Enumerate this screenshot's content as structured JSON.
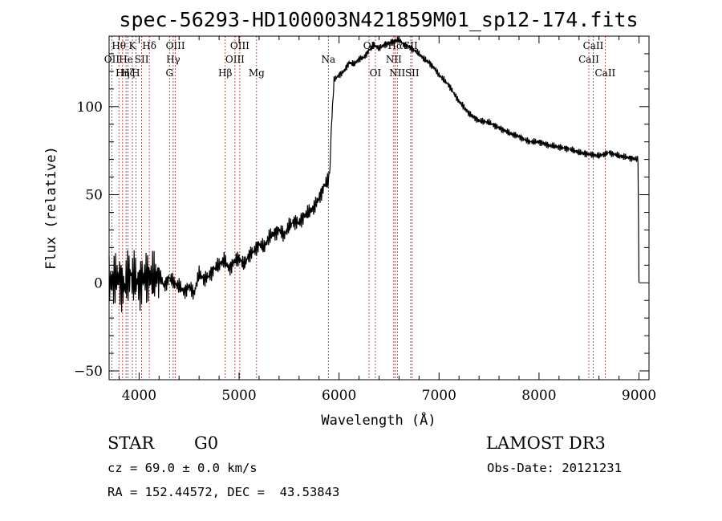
{
  "chart_data": {
    "type": "line",
    "title": "spec-56293-HD100003N421859M01_sp12-174.fits",
    "xlabel": "Wavelength (Å)",
    "ylabel": "Flux (relative)",
    "xlim": [
      3700,
      9100
    ],
    "ylim": [
      -55,
      140
    ],
    "x_ticks": [
      4000,
      5000,
      6000,
      7000,
      8000,
      9000
    ],
    "x_tick_labels": [
      "4000",
      "5000",
      "6000",
      "7000",
      "8000",
      "9000"
    ],
    "y_ticks": [
      -50,
      0,
      50,
      100
    ],
    "y_tick_labels": [
      "−50",
      "0",
      "50",
      "100"
    ],
    "grid": false,
    "series": [
      {
        "name": "spectrum flux",
        "color": "#000000",
        "x": [
          3700,
          3750,
          3800,
          3850,
          3900,
          3950,
          4000,
          4050,
          4100,
          4150,
          4200,
          4250,
          4300,
          4350,
          4400,
          4450,
          4500,
          4550,
          4600,
          4650,
          4700,
          4750,
          4800,
          4850,
          4900,
          4950,
          5000,
          5050,
          5100,
          5150,
          5200,
          5250,
          5300,
          5350,
          5400,
          5450,
          5500,
          5550,
          5600,
          5650,
          5700,
          5750,
          5800,
          5850,
          5890,
          5910,
          5920,
          5950,
          6000,
          6050,
          6100,
          6150,
          6200,
          6250,
          6300,
          6350,
          6400,
          6450,
          6500,
          6550,
          6600,
          6650,
          6700,
          6750,
          6800,
          6850,
          6900,
          6950,
          7000,
          7100,
          7200,
          7300,
          7400,
          7500,
          7600,
          7700,
          7800,
          7900,
          8000,
          8100,
          8200,
          8300,
          8400,
          8500,
          8600,
          8700,
          8800,
          8900,
          8990,
          9000
        ],
        "y": [
          0,
          2,
          3,
          -3,
          5,
          2,
          0,
          3,
          4,
          2,
          5,
          -2,
          3,
          0,
          -2,
          -5,
          -2,
          -6,
          5,
          2,
          4,
          8,
          10,
          13,
          8,
          12,
          14,
          10,
          16,
          18,
          22,
          20,
          26,
          28,
          30,
          27,
          32,
          35,
          34,
          38,
          40,
          43,
          48,
          55,
          58,
          65,
          85,
          115,
          118,
          120,
          125,
          124,
          127,
          128,
          132,
          135,
          133,
          135,
          136,
          137,
          138,
          135,
          134,
          132,
          130,
          127,
          125,
          122,
          118,
          112,
          103,
          96,
          92,
          91,
          88,
          85,
          83,
          80,
          80,
          78,
          77,
          76,
          74,
          73,
          72,
          74,
          72,
          71,
          70,
          0
        ]
      }
    ],
    "lines": [
      {
        "wavelength": 3727,
        "label": "OII",
        "row": 1
      },
      {
        "wavelength": 3798,
        "label": "Hθ",
        "row": 0
      },
      {
        "wavelength": 3835,
        "label": "Hη",
        "row": 2
      },
      {
        "wavelength": 3869,
        "label": "He",
        "row": 1
      },
      {
        "wavelength": 3889,
        "label": "Hζ",
        "row": 2
      },
      {
        "wavelength": 3933,
        "label": "K",
        "row": 0
      },
      {
        "wavelength": 3968,
        "label": "H",
        "row": 2
      },
      {
        "wavelength": 4026,
        "label": "SII",
        "row": 1
      },
      {
        "wavelength": 4102,
        "label": "Hδ",
        "row": 0
      },
      {
        "wavelength": 4304,
        "label": "G",
        "row": 2
      },
      {
        "wavelength": 4341,
        "label": "Hγ",
        "row": 1
      },
      {
        "wavelength": 4363,
        "label": "OIII",
        "row": 0
      },
      {
        "wavelength": 4861,
        "label": "Hβ",
        "row": 2
      },
      {
        "wavelength": 4959,
        "label": "OIII",
        "row": 1
      },
      {
        "wavelength": 5007,
        "label": "OIII",
        "row": 0
      },
      {
        "wavelength": 5175,
        "label": "Mg",
        "row": 2
      },
      {
        "wavelength": 5893,
        "label": "Na",
        "row": 1
      },
      {
        "wavelength": 6300,
        "label": "OI",
        "row": 0
      },
      {
        "wavelength": 6363,
        "label": "OI",
        "row": 2
      },
      {
        "wavelength": 6548,
        "label": "NII",
        "row": 1
      },
      {
        "wavelength": 6563,
        "label": "Hα",
        "row": 0
      },
      {
        "wavelength": 6583,
        "label": "NII",
        "row": 2
      },
      {
        "wavelength": 6716,
        "label": "SII",
        "row": 0
      },
      {
        "wavelength": 6731,
        "label": "SII",
        "row": 2
      },
      {
        "wavelength": 8498,
        "label": "CaII",
        "row": 1
      },
      {
        "wavelength": 8542,
        "label": "CaII",
        "row": 0
      },
      {
        "wavelength": 8662,
        "label": "CaII",
        "row": 2
      }
    ]
  },
  "info": {
    "object_class": "STAR",
    "subclass": "G0",
    "survey": "LAMOST DR3",
    "redshift": "cz = 69.0 ± 0.0 km/s",
    "obs_date": "Obs-Date: 20121231",
    "coords": "RA = 152.44572, DEC =  43.53843"
  },
  "colors": {
    "spectrum": "#000000",
    "line_markers": "#b22222",
    "text": "#000000"
  }
}
